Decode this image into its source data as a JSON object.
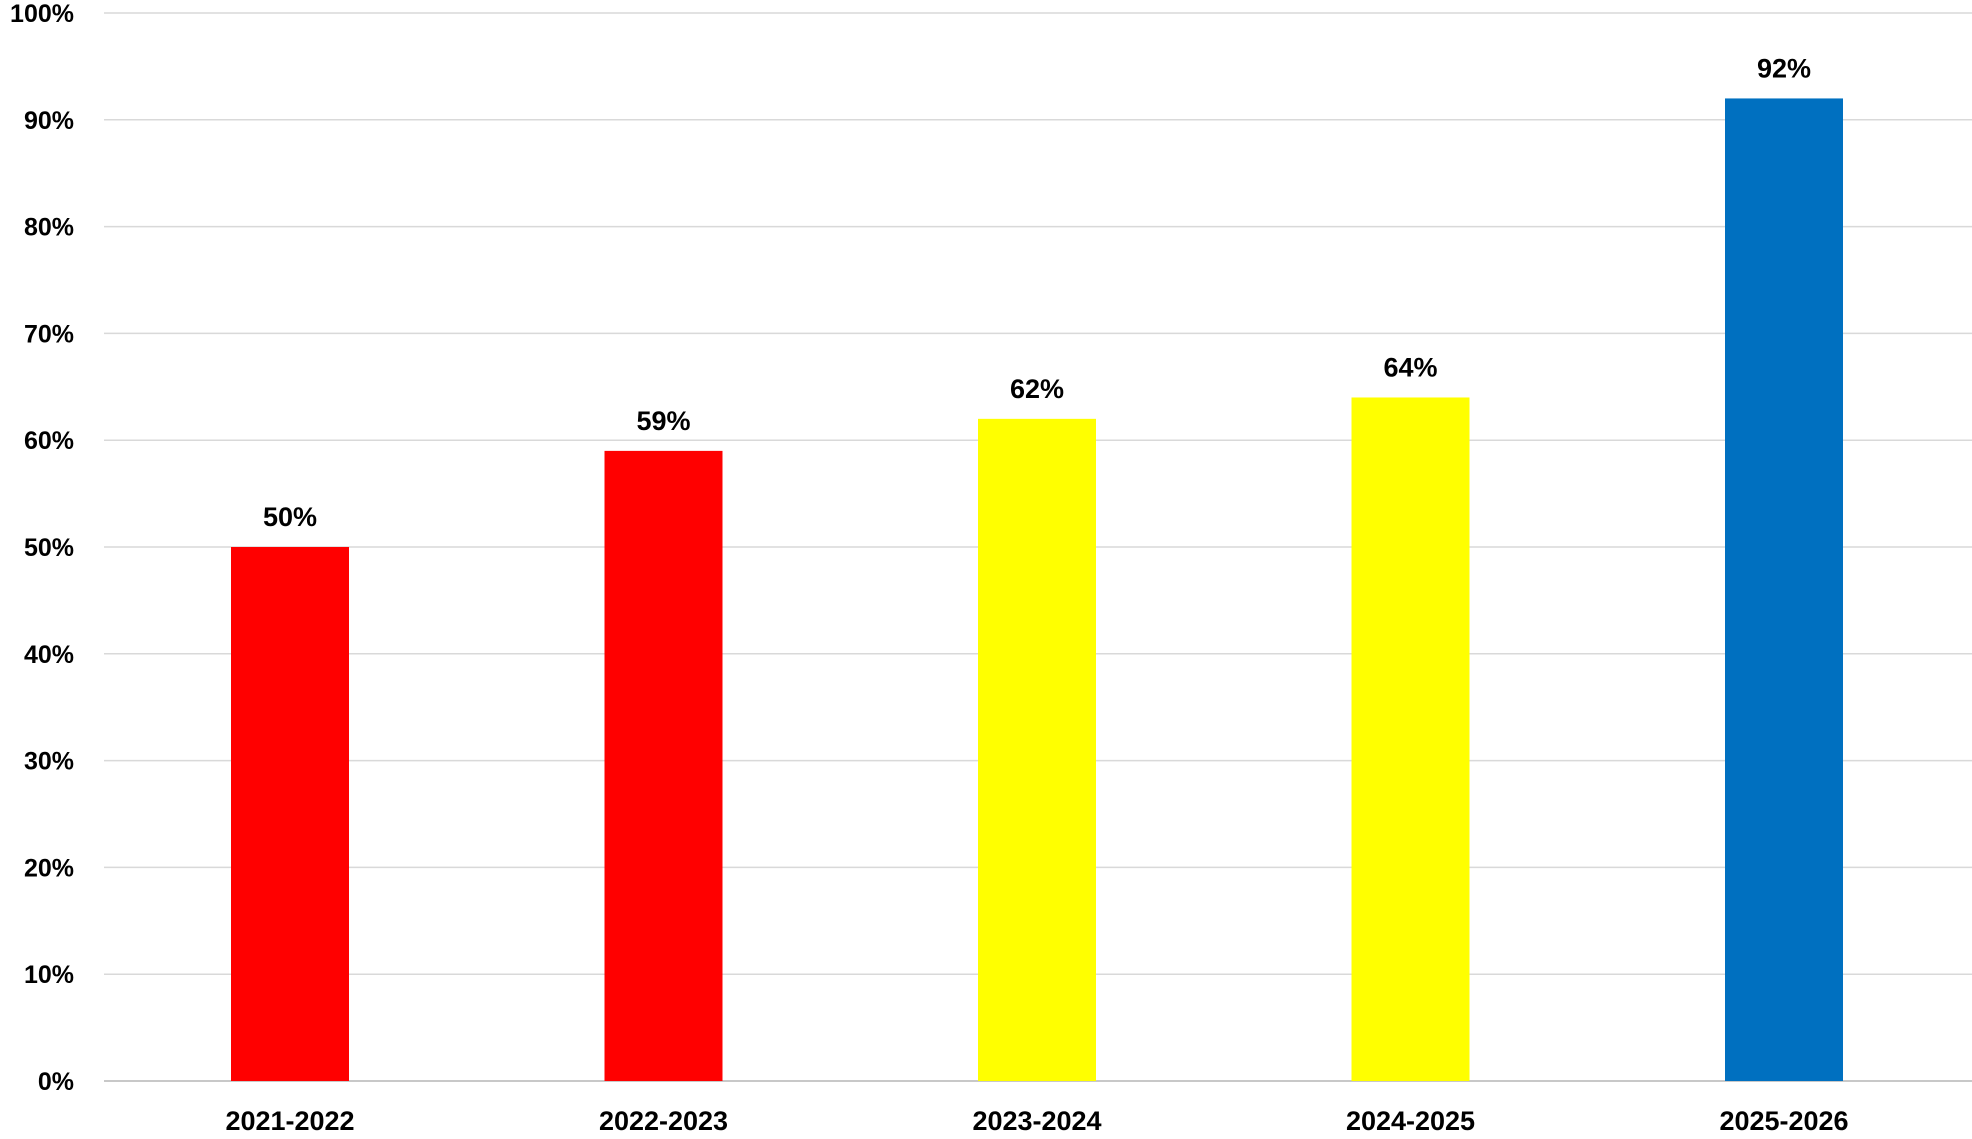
{
  "chart_data": {
    "type": "bar",
    "title": "",
    "xlabel": "",
    "ylabel": "",
    "categories": [
      "2021-2022",
      "2022-2023",
      "2023-2024",
      "2024-2025",
      "2025-2026"
    ],
    "values": [
      50,
      59,
      62,
      64,
      92
    ],
    "data_labels": [
      "50%",
      "59%",
      "62%",
      "64%",
      "92%"
    ],
    "bar_colors": [
      "#ff0000",
      "#ff0000",
      "#ffff00",
      "#ffff00",
      "#0070c0"
    ],
    "ylim": [
      0,
      100
    ],
    "yticks": [
      0,
      10,
      20,
      30,
      40,
      50,
      60,
      70,
      80,
      90,
      100
    ],
    "ytick_labels": [
      "0%",
      "10%",
      "20%",
      "30%",
      "40%",
      "50%",
      "60%",
      "70%",
      "80%",
      "90%",
      "100%"
    ],
    "grid": true,
    "legend": "none"
  }
}
